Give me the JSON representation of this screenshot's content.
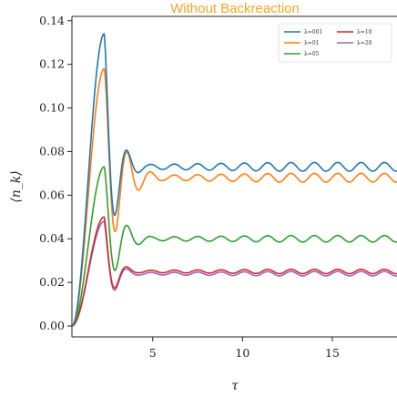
{
  "chart_data": {
    "type": "line",
    "title": "Without Backreaction",
    "xlabel": "τ",
    "ylabel": "⟨n_k⟩",
    "xlim": [
      0.5,
      18.6
    ],
    "ylim": [
      -0.005,
      0.142
    ],
    "x_ticks": [
      5,
      10,
      15
    ],
    "x_tick_labels": [
      "5",
      "10",
      "15"
    ],
    "y_ticks": [
      0.0,
      0.02,
      0.04,
      0.06,
      0.08,
      0.1,
      0.12,
      0.14
    ],
    "y_tick_labels": [
      "0.00",
      "0.02",
      "0.04",
      "0.06",
      "0.08",
      "0.10",
      "0.12",
      "0.14"
    ],
    "grid": false,
    "legend_position": "top-right",
    "series": [
      {
        "name": "λ=001",
        "color": "#1f77b4",
        "start_x": 0.5,
        "start_y": 0.0,
        "peak_x": 2.3,
        "peak_y": 0.134,
        "first_trough": 0.052,
        "asymptote": 0.073,
        "final_amplitude": 0.002,
        "period": 1.3
      },
      {
        "name": "λ=01",
        "color": "#ff7f0e",
        "start_x": 0.5,
        "start_y": 0.0,
        "peak_x": 2.3,
        "peak_y": 0.118,
        "first_trough": 0.044,
        "asymptote": 0.068,
        "final_amplitude": 0.002,
        "period": 1.3
      },
      {
        "name": "λ=05",
        "color": "#2ca02c",
        "start_x": 0.5,
        "start_y": 0.0,
        "peak_x": 2.3,
        "peak_y": 0.073,
        "first_trough": 0.026,
        "asymptote": 0.04,
        "final_amplitude": 0.0015,
        "period": 1.3
      },
      {
        "name": "λ=10",
        "color": "#d62728",
        "start_x": 0.5,
        "start_y": 0.0,
        "peak_x": 2.3,
        "peak_y": 0.05,
        "first_trough": 0.018,
        "asymptote": 0.025,
        "final_amplitude": 0.001,
        "period": 1.3
      },
      {
        "name": "λ=20",
        "color": "#9467bd",
        "start_x": 0.5,
        "start_y": 0.0,
        "peak_x": 2.3,
        "peak_y": 0.048,
        "first_trough": 0.017,
        "asymptote": 0.024,
        "final_amplitude": 0.001,
        "period": 1.3
      }
    ]
  }
}
